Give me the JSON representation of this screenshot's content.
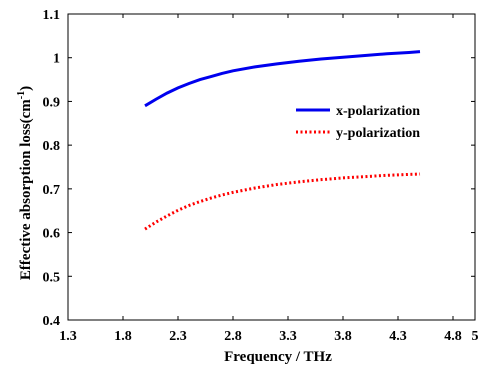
{
  "chart_data": {
    "type": "line",
    "xlabel": "Frequency / THz",
    "ylabel_main": "Effective absorption loss(cm",
    "ylabel_sup": "-1",
    "ylabel_close": ")",
    "xlim": [
      1.3,
      5
    ],
    "ylim": [
      0.4,
      1.1
    ],
    "xticks": [
      1.3,
      1.8,
      2.3,
      2.8,
      3.3,
      3.8,
      4.3,
      4.8,
      5
    ],
    "xtick_labels": [
      "1.3",
      "1.8",
      "2.3",
      "2.8",
      "3.3",
      "3.8",
      "4.3",
      "4.8",
      "5"
    ],
    "yticks": [
      0.4,
      0.5,
      0.6,
      0.7,
      0.8,
      0.9,
      1.0,
      1.1
    ],
    "ytick_labels": [
      "0.4",
      "0.5",
      "0.6",
      "0.7",
      "0.8",
      "0.9",
      "1",
      "1.1"
    ],
    "grid": false,
    "legend_position": "upper-right",
    "series": [
      {
        "name": "x-polarization",
        "color": "#0000ee",
        "dash": "solid",
        "x": [
          2.0,
          2.1,
          2.2,
          2.3,
          2.4,
          2.5,
          2.6,
          2.7,
          2.8,
          3.0,
          3.2,
          3.4,
          3.6,
          3.8,
          4.0,
          4.2,
          4.4,
          4.5
        ],
        "y": [
          0.89,
          0.905,
          0.919,
          0.931,
          0.941,
          0.95,
          0.957,
          0.964,
          0.97,
          0.979,
          0.986,
          0.992,
          0.997,
          1.001,
          1.005,
          1.009,
          1.012,
          1.014
        ]
      },
      {
        "name": "y-polarization",
        "color": "#ff0000",
        "dash": "dotted",
        "x": [
          2.0,
          2.1,
          2.2,
          2.3,
          2.4,
          2.5,
          2.6,
          2.7,
          2.8,
          3.0,
          3.2,
          3.4,
          3.6,
          3.8,
          4.0,
          4.2,
          4.4,
          4.5
        ],
        "y": [
          0.608,
          0.624,
          0.638,
          0.651,
          0.662,
          0.671,
          0.679,
          0.686,
          0.692,
          0.702,
          0.71,
          0.716,
          0.721,
          0.725,
          0.728,
          0.731,
          0.733,
          0.734
        ]
      }
    ]
  }
}
